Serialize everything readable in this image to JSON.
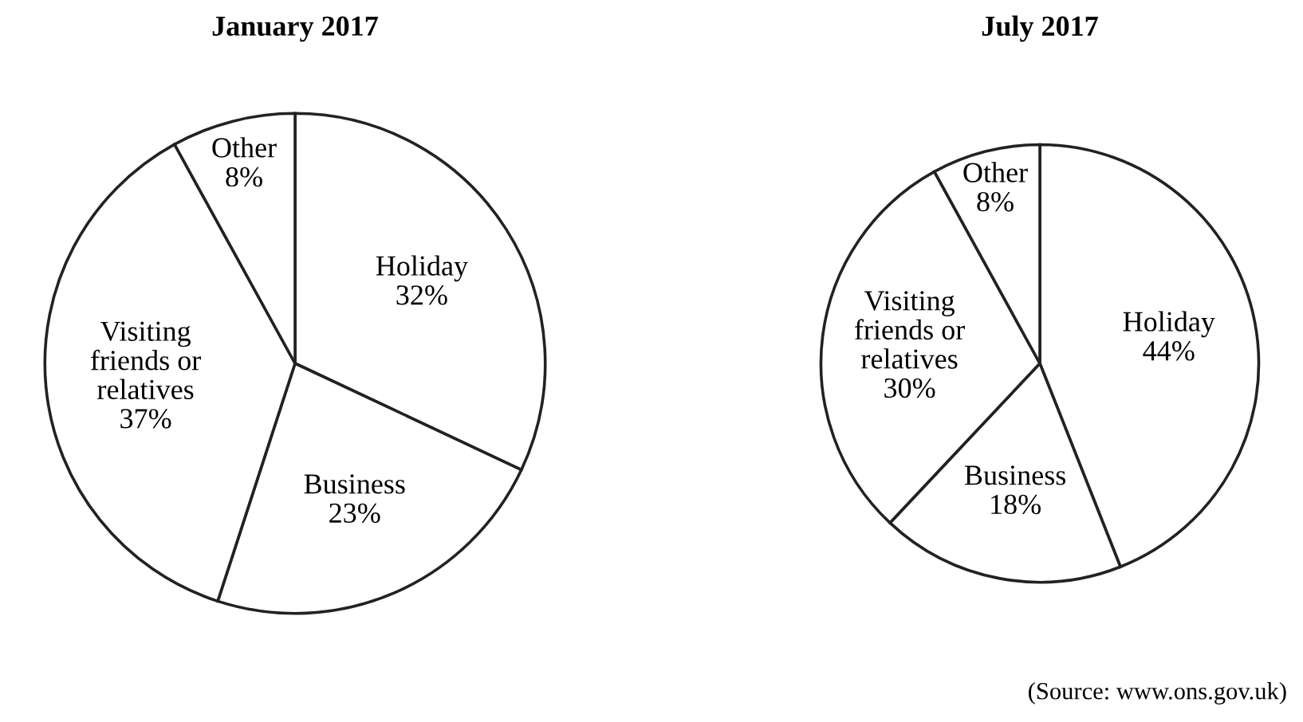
{
  "chart_data": [
    {
      "type": "pie",
      "title": "January 2017",
      "categories": [
        "Holiday",
        "Business",
        "Visiting\nfriends or\nrelatives",
        "Other"
      ],
      "values": [
        32,
        23,
        37,
        8
      ],
      "colors": [
        "#ffffff",
        "#ffffff",
        "#ffffff",
        "#ffffff"
      ],
      "value_labels": [
        "32%",
        "23%",
        "37%",
        "8%"
      ]
    },
    {
      "type": "pie",
      "title": "July 2017",
      "categories": [
        "Holiday",
        "Business",
        "Visiting\nfriends or\nrelatives",
        "Other"
      ],
      "values": [
        44,
        18,
        30,
        8
      ],
      "colors": [
        "#ffffff",
        "#ffffff",
        "#ffffff",
        "#ffffff"
      ],
      "value_labels": [
        "44%",
        "18%",
        "30%",
        "8%"
      ],
      "annotations": [
        "(Source: www.ons.gov.uk)"
      ]
    }
  ]
}
